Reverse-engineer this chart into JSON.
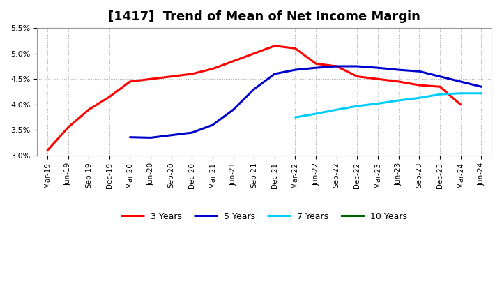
{
  "title": "[1417]  Trend of Mean of Net Income Margin",
  "x_labels": [
    "Mar-19",
    "Jun-19",
    "Sep-19",
    "Dec-19",
    "Mar-20",
    "Jun-20",
    "Sep-20",
    "Dec-20",
    "Mar-21",
    "Jun-21",
    "Sep-21",
    "Dec-21",
    "Mar-22",
    "Jun-22",
    "Sep-22",
    "Dec-22",
    "Mar-23",
    "Jun-23",
    "Sep-23",
    "Dec-23",
    "Mar-24",
    "Jun-24"
  ],
  "series": {
    "3 Years": {
      "color": "#ff0000",
      "indices": [
        0,
        1,
        2,
        3,
        4,
        5,
        6,
        7,
        8,
        9,
        10,
        11,
        12,
        13,
        14,
        15,
        16,
        17,
        18,
        19,
        20
      ],
      "values": [
        3.1,
        3.55,
        3.9,
        4.15,
        4.45,
        4.5,
        4.55,
        4.6,
        4.7,
        4.85,
        5.0,
        5.15,
        5.1,
        4.8,
        4.75,
        4.55,
        4.5,
        4.45,
        4.38,
        4.35,
        4.0
      ]
    },
    "5 Years": {
      "color": "#0000cc",
      "indices": [
        4,
        5,
        6,
        7,
        8,
        9,
        10,
        11,
        12,
        13,
        14,
        15,
        16,
        17,
        18,
        19,
        20,
        21
      ],
      "values": [
        3.36,
        3.35,
        3.4,
        3.45,
        3.6,
        3.9,
        4.3,
        4.6,
        4.68,
        4.72,
        4.75,
        4.75,
        4.72,
        4.68,
        4.65,
        4.55,
        4.45,
        4.35
      ]
    },
    "7 Years": {
      "color": "#00ccff",
      "indices": [
        12,
        13,
        14,
        15,
        16,
        17,
        18,
        19,
        20,
        21
      ],
      "values": [
        3.75,
        3.82,
        3.9,
        3.97,
        4.02,
        4.08,
        4.13,
        4.2,
        4.22,
        4.22
      ]
    },
    "10 Years": {
      "color": "#006600",
      "indices": [],
      "values": []
    }
  },
  "ylim": [
    3.0,
    5.5
  ],
  "yticks": [
    3.0,
    3.5,
    4.0,
    4.5,
    5.0,
    5.5
  ],
  "background_color": "#ffffff",
  "grid_color": "#aaaaaa",
  "title_fontsize": 13,
  "linewidth": 2.2
}
